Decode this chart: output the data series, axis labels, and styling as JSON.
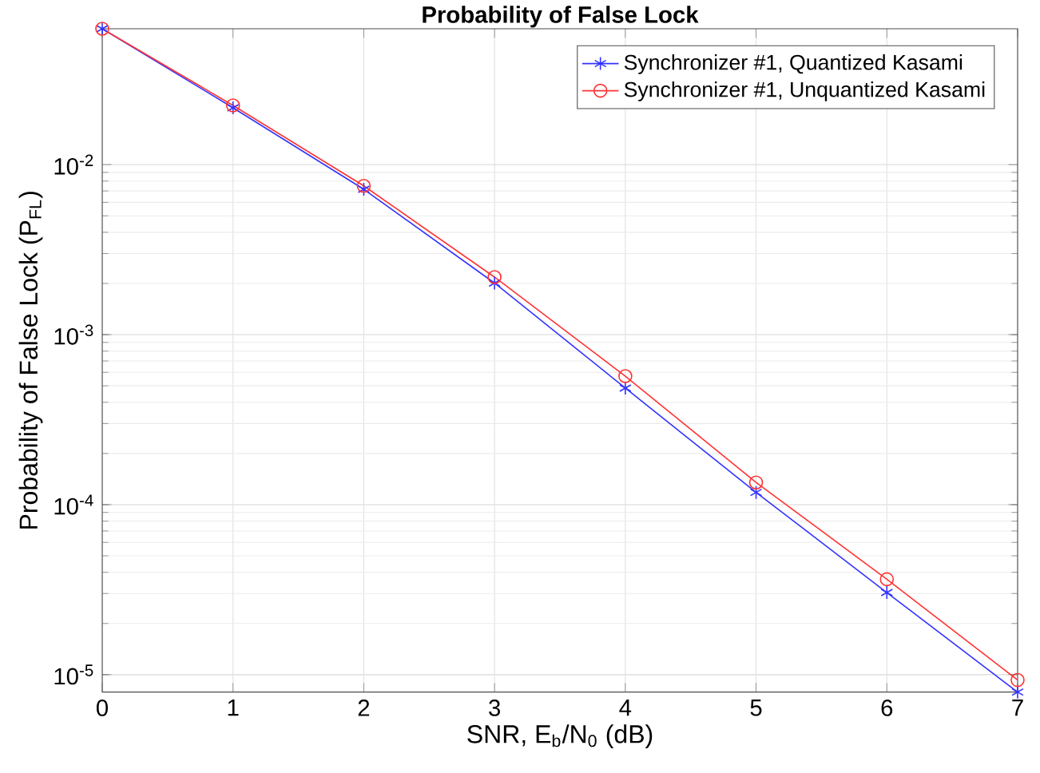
{
  "chart_data": {
    "type": "line",
    "title": "Probability of False Lock",
    "xlabel": "SNR, E$_{b}$/N$_{0}$ (dB)",
    "ylabel": "Probability of False Lock (P$_{FL}$)",
    "x": [
      0,
      1,
      2,
      3,
      4,
      5,
      6,
      7
    ],
    "series": [
      {
        "name": "Synchronizer #1, Quantized Kasami",
        "color": "#3333ff",
        "marker": "cross",
        "values": [
          0.063,
          0.0216,
          0.00716,
          0.00201,
          0.000485,
          0.000118,
          3.04e-05,
          7.9e-06
        ]
      },
      {
        "name": "Synchronizer #1, Unquantized Kasami",
        "color": "#ff3333",
        "marker": "circle",
        "values": [
          0.063,
          0.0223,
          0.0075,
          0.00218,
          0.00057,
          0.000135,
          3.64e-05,
          9.3e-06
        ]
      }
    ],
    "log": "y",
    "xlim": [
      0,
      7
    ],
    "ylim": [
      7.9e-06,
      0.063
    ],
    "xticks": [
      0,
      1,
      2,
      3,
      4,
      5,
      6,
      7
    ],
    "yticks": [
      {
        "value": 1e-05,
        "label": "10$^{-5}$"
      },
      {
        "value": 0.0001,
        "label": "10$^{-4}$"
      },
      {
        "value": 0.001,
        "label": "10$^{-3}$"
      },
      {
        "value": 0.01,
        "label": "10$^{-2}$"
      }
    ],
    "grid": true,
    "legend": "top right",
    "line_style": "solid"
  }
}
